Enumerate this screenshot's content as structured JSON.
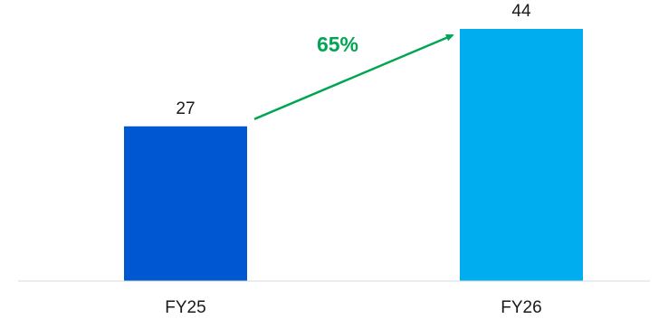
{
  "chart_data": {
    "type": "bar",
    "categories": [
      "FY25",
      "FY26"
    ],
    "values": [
      27,
      44
    ],
    "data_labels": [
      "27",
      "44"
    ],
    "ylim": [
      0,
      44
    ],
    "grid": false,
    "colors": [
      "#0057D2",
      "#00AEEF"
    ],
    "annotation": {
      "text": "65%",
      "from": "FY25",
      "to": "FY26",
      "color": "#00A651"
    }
  },
  "colors": {
    "axis": "#d9d9d9",
    "text": "#1a1a1a"
  }
}
